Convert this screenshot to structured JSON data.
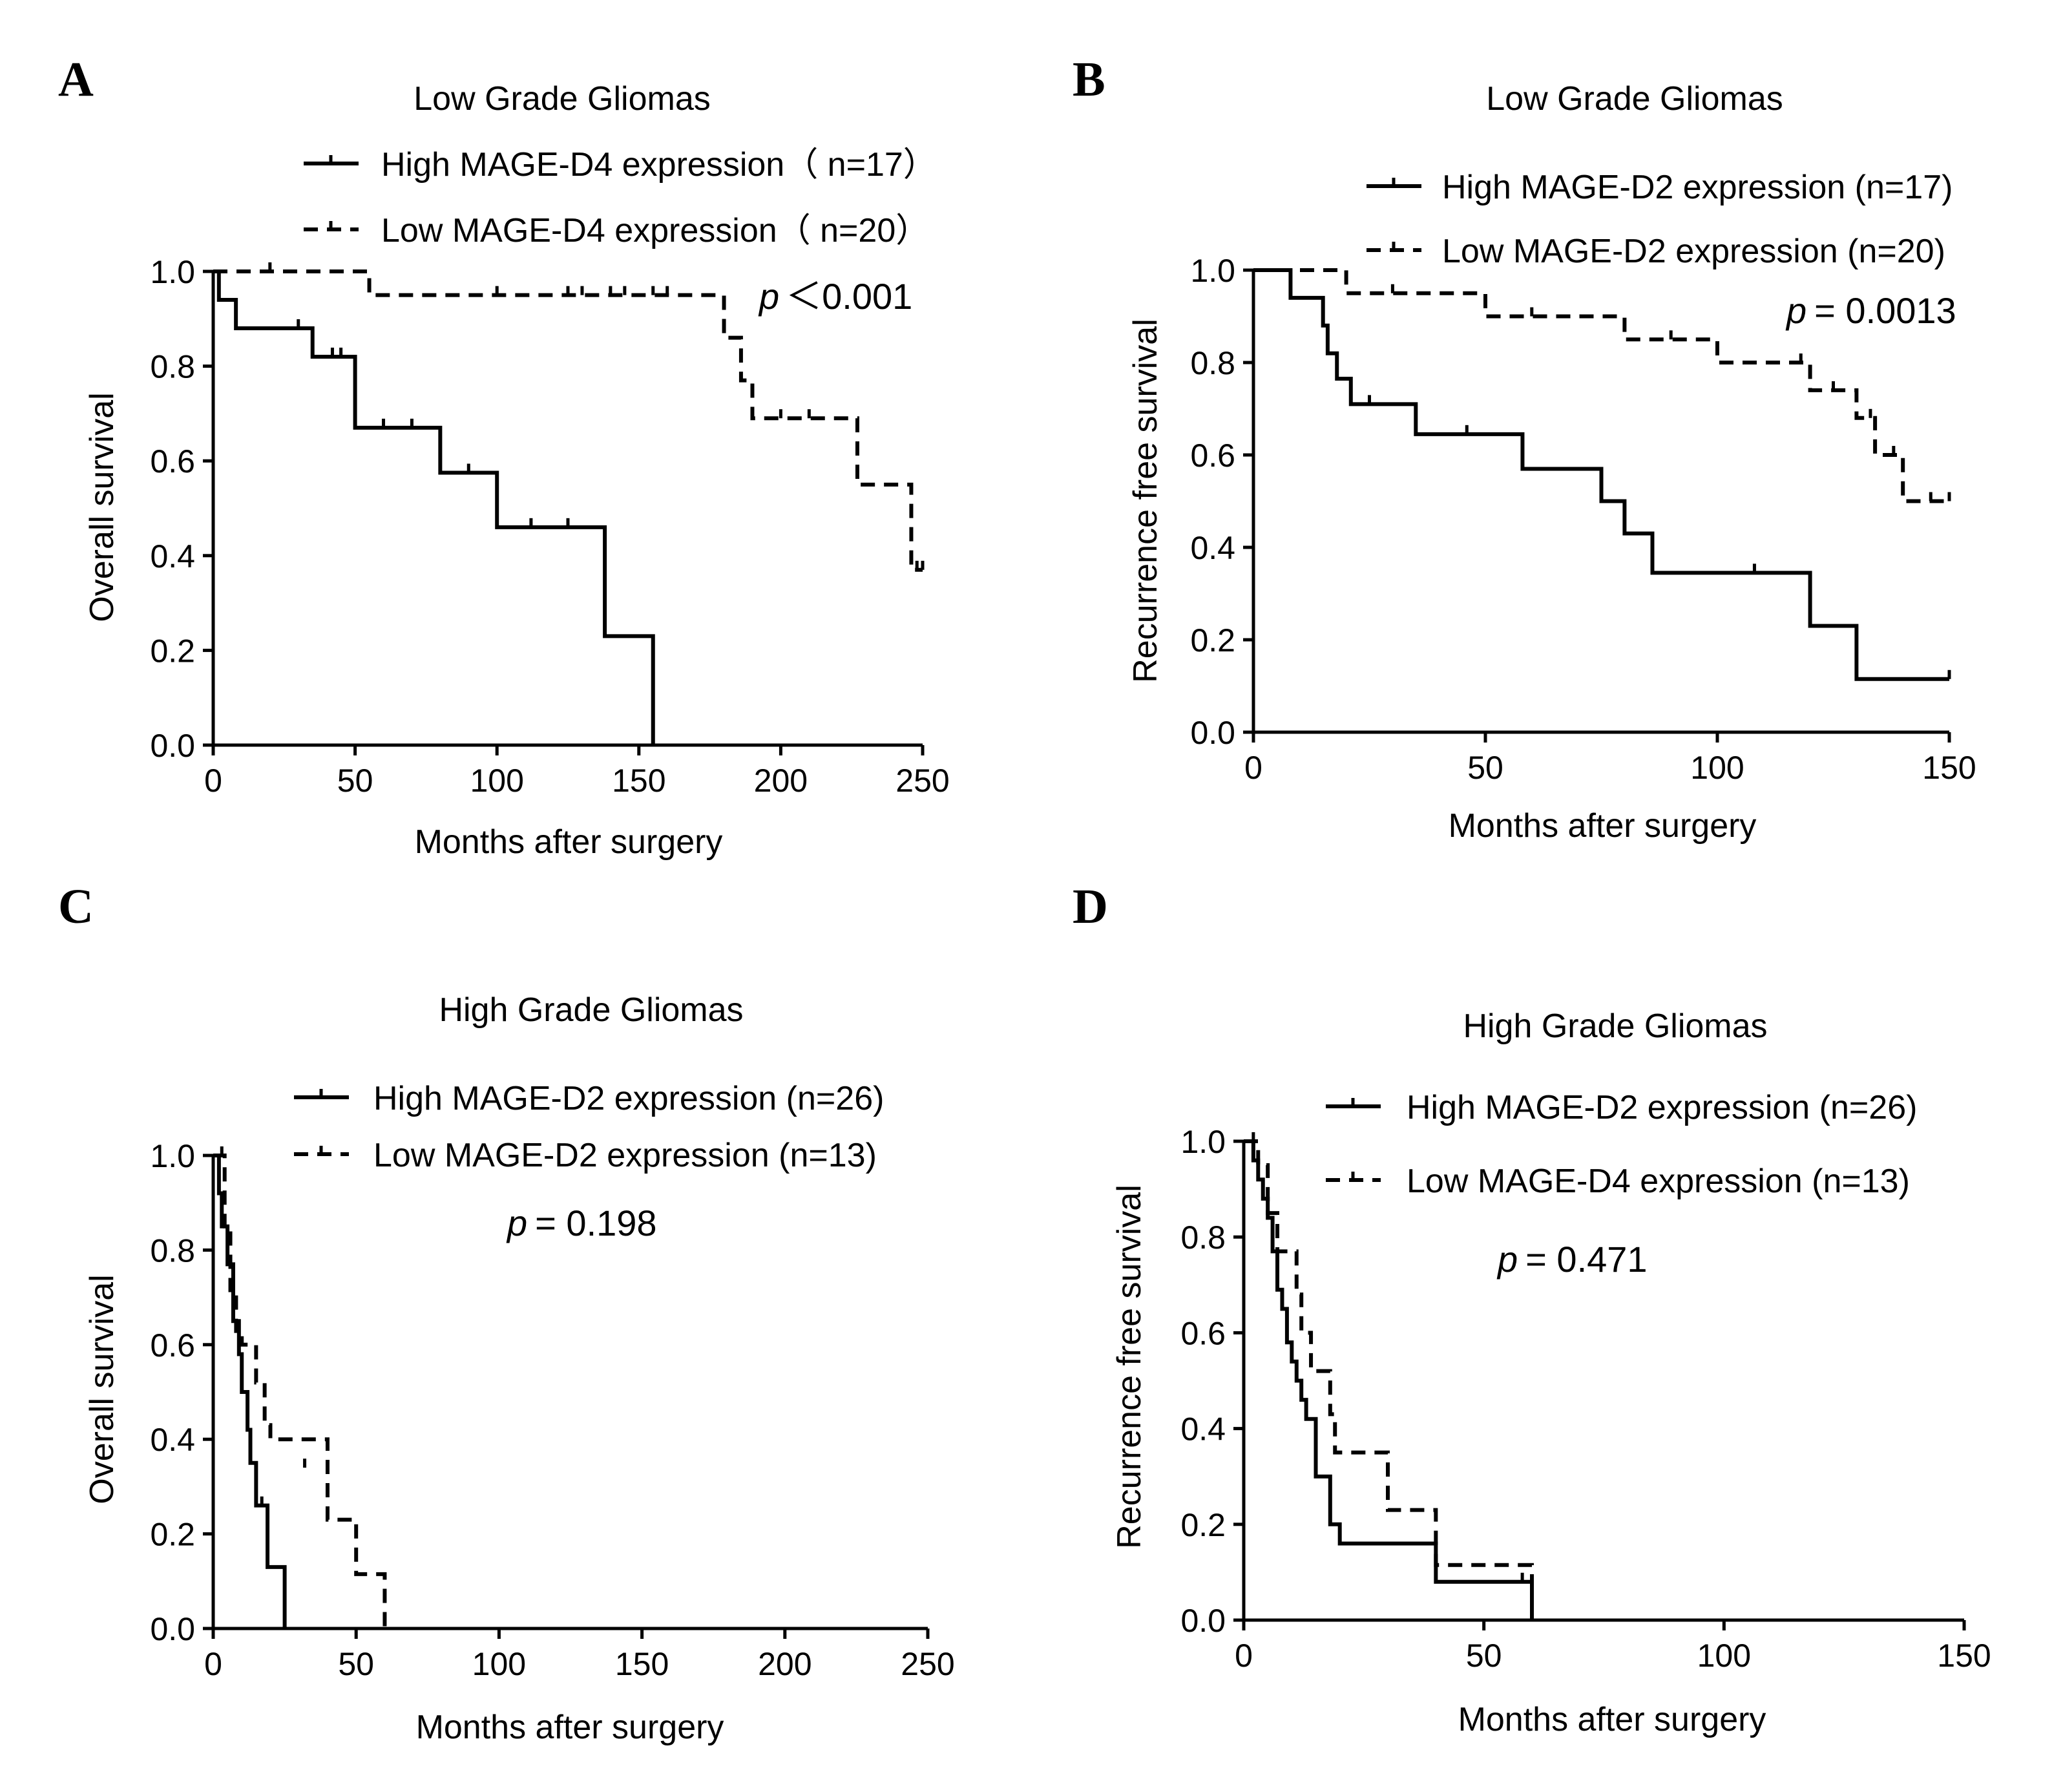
{
  "chart_data": [
    {
      "panel": "A",
      "type": "line",
      "title": "Low Grade Gliomas",
      "xlabel": "Months after surgery",
      "ylabel": "Overall survival",
      "xlim": [
        0,
        250
      ],
      "ylim": [
        0,
        1
      ],
      "xticks": [
        0,
        50,
        100,
        150,
        200,
        250
      ],
      "yticks": [
        0.0,
        0.2,
        0.4,
        0.6,
        0.8,
        1.0
      ],
      "pvalue_prefix": "p",
      "pvalue_text": "＜0.001",
      "series": [
        {
          "name": "High MAGE-D4 expression（ n=17）",
          "style": "solid",
          "steps": [
            [
              0,
              1.0
            ],
            [
              2,
              0.94
            ],
            [
              8,
              0.88
            ],
            [
              35,
              0.82
            ],
            [
              50,
              0.67
            ],
            [
              80,
              0.575
            ],
            [
              100,
              0.46
            ],
            [
              138,
              0.23
            ],
            [
              155,
              0.0
            ]
          ],
          "censor": [
            [
              30,
              0.88
            ],
            [
              42,
              0.82
            ],
            [
              45,
              0.82
            ],
            [
              60,
              0.67
            ],
            [
              70,
              0.67
            ],
            [
              90,
              0.575
            ],
            [
              112,
              0.46
            ],
            [
              125,
              0.46
            ]
          ]
        },
        {
          "name": "Low MAGE-D4 expression（ n=20）",
          "style": "dashed",
          "steps": [
            [
              0,
              1.0
            ],
            [
              55,
              0.95
            ],
            [
              180,
              0.86
            ],
            [
              186,
              0.77
            ],
            [
              190,
              0.69
            ],
            [
              227,
              0.55
            ],
            [
              246,
              0.37
            ]
          ],
          "censor": [
            [
              20,
              1.0
            ],
            [
              100,
              0.95
            ],
            [
              125,
              0.95
            ],
            [
              130,
              0.95
            ],
            [
              140,
              0.95
            ],
            [
              145,
              0.95
            ],
            [
              155,
              0.95
            ],
            [
              160,
              0.95
            ],
            [
              200,
              0.69
            ],
            [
              210,
              0.69
            ],
            [
              248,
              0.37
            ],
            [
              250,
              0.37
            ]
          ]
        }
      ]
    },
    {
      "panel": "B",
      "type": "line",
      "title": "Low Grade Gliomas",
      "xlabel": "Months after surgery",
      "ylabel": "Recurrence free survival",
      "xlim": [
        0,
        150
      ],
      "ylim": [
        0,
        1
      ],
      "xticks": [
        0,
        50,
        100,
        150
      ],
      "yticks": [
        0.0,
        0.2,
        0.4,
        0.6,
        0.8,
        1.0
      ],
      "pvalue_prefix": "p",
      "pvalue_text": "= 0.0013",
      "series": [
        {
          "name": "High MAGE-D2 expression (n=17)",
          "style": "solid",
          "steps": [
            [
              0,
              1.0
            ],
            [
              8,
              0.94
            ],
            [
              15,
              0.88
            ],
            [
              16,
              0.82
            ],
            [
              18,
              0.765
            ],
            [
              21,
              0.71
            ],
            [
              35,
              0.645
            ],
            [
              58,
              0.57
            ],
            [
              75,
              0.5
            ],
            [
              80,
              0.43
            ],
            [
              86,
              0.345
            ],
            [
              120,
              0.23
            ],
            [
              130,
              0.115
            ]
          ],
          "censor": [
            [
              15,
              0.88
            ],
            [
              25,
              0.71
            ],
            [
              46,
              0.645
            ],
            [
              108,
              0.345
            ],
            [
              150,
              0.115
            ]
          ]
        },
        {
          "name": "Low MAGE-D2 expression (n=20)",
          "style": "dashed",
          "steps": [
            [
              0,
              1.0
            ],
            [
              20,
              0.95
            ],
            [
              50,
              0.9
            ],
            [
              80,
              0.85
            ],
            [
              100,
              0.8
            ],
            [
              120,
              0.74
            ],
            [
              130,
              0.68
            ],
            [
              134,
              0.6
            ],
            [
              140,
              0.5
            ]
          ],
          "censor": [
            [
              30,
              0.95
            ],
            [
              60,
              0.9
            ],
            [
              90,
              0.85
            ],
            [
              118,
              0.8
            ],
            [
              125,
              0.74
            ],
            [
              133,
              0.68
            ],
            [
              138,
              0.6
            ],
            [
              146,
              0.5
            ],
            [
              150,
              0.5
            ]
          ]
        }
      ]
    },
    {
      "panel": "C",
      "type": "line",
      "title": "High Grade Gliomas",
      "xlabel": "Months after surgery",
      "ylabel": "Overall survival",
      "xlim": [
        0,
        250
      ],
      "ylim": [
        0,
        1
      ],
      "xticks": [
        0,
        50,
        100,
        150,
        200,
        250
      ],
      "yticks": [
        0.0,
        0.2,
        0.4,
        0.6,
        0.8,
        1.0
      ],
      "pvalue_prefix": "p",
      "pvalue_text": "= 0.198",
      "series": [
        {
          "name": "High MAGE-D2 expression (n=26)",
          "style": "solid",
          "steps": [
            [
              0,
              1.0
            ],
            [
              2,
              0.92
            ],
            [
              3,
              0.85
            ],
            [
              5,
              0.77
            ],
            [
              7,
              0.65
            ],
            [
              9,
              0.58
            ],
            [
              10,
              0.5
            ],
            [
              12,
              0.42
            ],
            [
              13,
              0.35
            ],
            [
              15,
              0.26
            ],
            [
              19,
              0.13
            ],
            [
              25,
              0.0
            ]
          ],
          "censor": [
            [
              17,
              0.26
            ]
          ]
        },
        {
          "name": "Low MAGE-D2 expression (n=13)",
          "style": "dashed",
          "steps": [
            [
              0,
              1.0
            ],
            [
              4,
              0.85
            ],
            [
              6,
              0.7
            ],
            [
              8,
              0.62
            ],
            [
              10,
              0.6
            ],
            [
              15,
              0.52
            ],
            [
              18,
              0.43
            ],
            [
              20,
              0.4
            ],
            [
              40,
              0.23
            ],
            [
              50,
              0.115
            ],
            [
              60,
              0.0
            ]
          ],
          "censor": [
            [
              3,
              1.0
            ],
            [
              32,
              0.34
            ]
          ]
        }
      ]
    },
    {
      "panel": "D",
      "type": "line",
      "title": "High Grade Gliomas",
      "xlabel": "Months after surgery",
      "ylabel": "Recurrence free survival",
      "xlim": [
        0,
        150
      ],
      "ylim": [
        0,
        1
      ],
      "xticks": [
        0,
        50,
        100,
        150
      ],
      "yticks": [
        0.0,
        0.2,
        0.4,
        0.6,
        0.8,
        1.0
      ],
      "pvalue_prefix": "p",
      "pvalue_text": "= 0.471",
      "series": [
        {
          "name": "High MAGE-D2 expression (n=26)",
          "style": "solid",
          "steps": [
            [
              0,
              1.0
            ],
            [
              2,
              0.96
            ],
            [
              3,
              0.92
            ],
            [
              4,
              0.88
            ],
            [
              5,
              0.84
            ],
            [
              6,
              0.77
            ],
            [
              7,
              0.69
            ],
            [
              8,
              0.65
            ],
            [
              9,
              0.58
            ],
            [
              10,
              0.54
            ],
            [
              11,
              0.5
            ],
            [
              12,
              0.46
            ],
            [
              13,
              0.42
            ],
            [
              15,
              0.3
            ],
            [
              18,
              0.2
            ],
            [
              20,
              0.16
            ],
            [
              40,
              0.08
            ],
            [
              60,
              0.0
            ]
          ],
          "censor": [
            [
              58,
              0.08
            ]
          ]
        },
        {
          "name": "Low MAGE-D4 expression (n=13)",
          "style": "dashed",
          "steps": [
            [
              0,
              1.0
            ],
            [
              3,
              0.95
            ],
            [
              5,
              0.85
            ],
            [
              7,
              0.77
            ],
            [
              11,
              0.68
            ],
            [
              12,
              0.6
            ],
            [
              14,
              0.52
            ],
            [
              18,
              0.43
            ],
            [
              19,
              0.35
            ],
            [
              30,
              0.23
            ],
            [
              40,
              0.115
            ],
            [
              60,
              0.0
            ]
          ],
          "censor": [
            [
              2,
              1.0
            ]
          ]
        }
      ]
    }
  ]
}
